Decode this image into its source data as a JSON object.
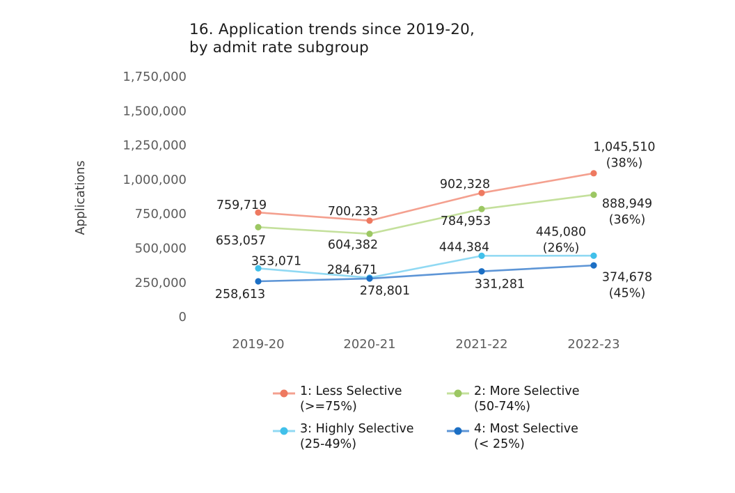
{
  "page": {
    "background": "#ffffff"
  },
  "chart_data": {
    "type": "line",
    "title": "16. Application trends since 2019-20,\nby admit rate subgroup",
    "xlabel": "",
    "ylabel": "Applications",
    "categories": [
      "2019-20",
      "2020-21",
      "2021-22",
      "2022-23"
    ],
    "y_tick_labels": [
      "1,750,000",
      "1,500,000",
      "1,250,000",
      "1,000,000",
      "750,000",
      "500,000",
      "250,000",
      "0"
    ],
    "ylim": [
      0,
      1750000
    ],
    "grid": "off",
    "legend_position": "bottom",
    "axis_text_color": "#5c5c5c",
    "label_text_color": "#222222",
    "series": [
      {
        "name": "1: Less Selective\n(>=75%)",
        "marker_color": "#ee7960",
        "line_color": "#f4a08f",
        "values": [
          759719,
          700233,
          902328,
          1045510
        ],
        "point_labels": [
          "759,719",
          "700,233",
          "902,328",
          "1,045,510\n(38%)"
        ]
      },
      {
        "name": "2: More Selective\n(50-74%)",
        "marker_color": "#9cc763",
        "line_color": "#c4e09c",
        "values": [
          653057,
          604382,
          784953,
          888949
        ],
        "point_labels": [
          "653,057",
          "604,382",
          "784,953",
          "888,949\n(36%)"
        ]
      },
      {
        "name": "3: Highly Selective\n(25-49%)",
        "marker_color": "#41c0ea",
        "line_color": "#90d9f3",
        "values": [
          353071,
          284671,
          444384,
          445080
        ],
        "point_labels": [
          "353,071",
          "284,671",
          "444,384",
          "445,080\n(26%)"
        ]
      },
      {
        "name": "4: Most Selective\n(< 25%)",
        "marker_color": "#1c6fc4",
        "line_color": "#5d95d6",
        "values": [
          258613,
          278801,
          331281,
          374678
        ],
        "point_labels": [
          "258,613",
          "278,801",
          "331,281",
          "374,678\n(45%)"
        ]
      }
    ]
  }
}
